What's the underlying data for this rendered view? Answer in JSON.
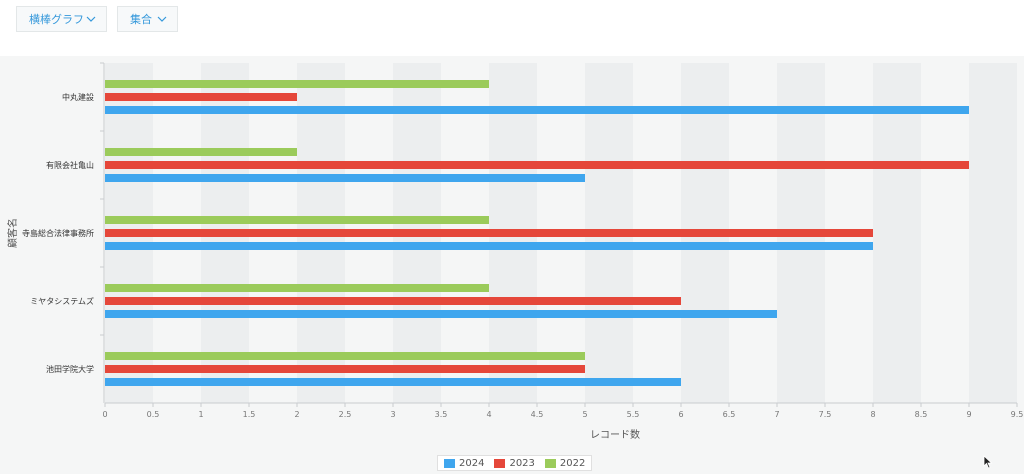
{
  "toolbar": {
    "chart_type": {
      "label": "横棒グラフ",
      "icon": "chevron-down-icon"
    },
    "aggregation": {
      "label": "集合",
      "icon": "chevron-down-icon"
    }
  },
  "colors": {
    "2024": "#3fa6ee",
    "2023": "#e5473a",
    "2022": "#9bcb5b",
    "accent": "#3498db"
  },
  "chart_data": {
    "type": "bar",
    "orientation": "horizontal",
    "categories": [
      "中丸建設",
      "有限会社亀山",
      "寺島総合法律事務所",
      "ミヤタシステムズ",
      "池田学院大学"
    ],
    "series": [
      {
        "name": "2022",
        "color": "#9bcb5b",
        "values": [
          4,
          2,
          4,
          4,
          5
        ]
      },
      {
        "name": "2023",
        "color": "#e5473a",
        "values": [
          2,
          9,
          8,
          6,
          5
        ]
      },
      {
        "name": "2024",
        "color": "#3fa6ee",
        "values": [
          9,
          5,
          8,
          7,
          6
        ]
      }
    ],
    "xlabel": "レコード数",
    "ylabel": "顧客名",
    "xlim": [
      0,
      9.5
    ],
    "xticks": [
      "0",
      "0.5",
      "1",
      "1.5",
      "2",
      "2.5",
      "3",
      "3.5",
      "4",
      "4.5",
      "5",
      "5.5",
      "6",
      "6.5",
      "7",
      "7.5",
      "8",
      "8.5",
      "9",
      "9.5"
    ],
    "grid": "alternating vertical bands",
    "legend": {
      "position": "bottom-center",
      "entries": [
        {
          "name": "2024",
          "color": "#3fa6ee"
        },
        {
          "name": "2023",
          "color": "#e5473a"
        },
        {
          "name": "2022",
          "color": "#9bcb5b"
        }
      ]
    }
  }
}
